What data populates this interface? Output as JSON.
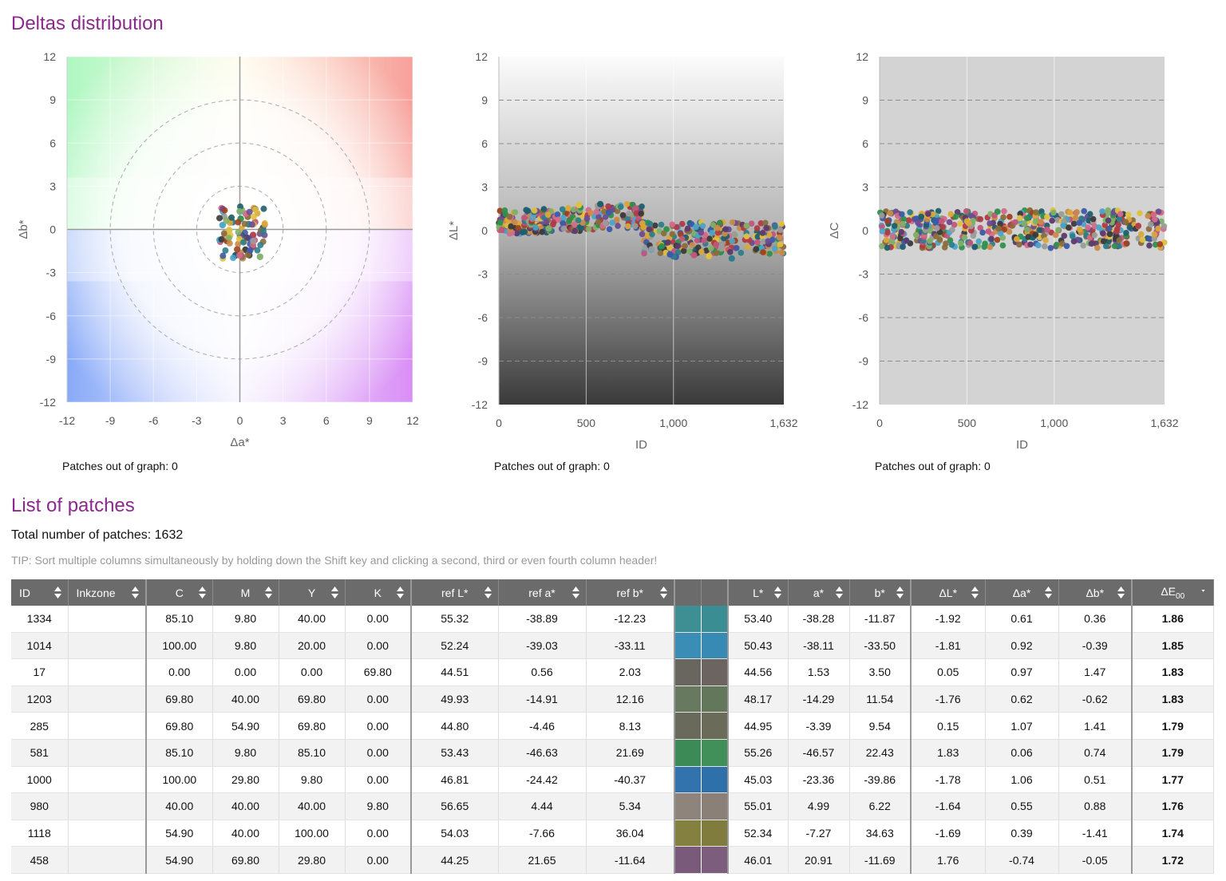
{
  "headings": {
    "deltas": "Deltas distribution",
    "list": "List of patches"
  },
  "charts": {
    "ab": {
      "out_of_graph": "Patches out of graph: 0"
    },
    "dl": {
      "out_of_graph": "Patches out of graph: 0"
    },
    "dc": {
      "out_of_graph": "Patches out of graph: 0"
    }
  },
  "chart_data": [
    {
      "type": "scatter",
      "xlabel": "Δa*",
      "ylabel": "Δb*",
      "xlim": [
        -12,
        12
      ],
      "ylim": [
        -12,
        12
      ],
      "xticks": [
        "-12",
        "-9",
        "-6",
        "-3",
        "0",
        "3",
        "6",
        "9",
        "12"
      ],
      "yticks": [
        "12",
        "9",
        "6",
        "3",
        "0",
        "-3",
        "-6",
        "-9",
        "-12"
      ],
      "reference_circles_radius": [
        3,
        6,
        9
      ],
      "grid": true,
      "points": [
        {
          "x": 0.61,
          "y": 0.36
        },
        {
          "x": 0.92,
          "y": -0.39
        },
        {
          "x": 0.97,
          "y": 1.47
        },
        {
          "x": 0.62,
          "y": -0.62
        },
        {
          "x": 1.07,
          "y": 1.41
        },
        {
          "x": 0.06,
          "y": 0.74
        },
        {
          "x": 1.06,
          "y": 0.51
        },
        {
          "x": 0.55,
          "y": 0.88
        },
        {
          "x": 0.39,
          "y": -1.41
        },
        {
          "x": -0.74,
          "y": -0.05
        },
        {
          "x": -1.2,
          "y": 0.3
        },
        {
          "x": -0.9,
          "y": -0.8
        },
        {
          "x": 1.4,
          "y": -1.9
        },
        {
          "x": -0.3,
          "y": -1.8
        },
        {
          "x": 0.2,
          "y": -2.0
        },
        {
          "x": 1.6,
          "y": 0.1
        },
        {
          "x": -1.1,
          "y": 0.9
        },
        {
          "x": 0.4,
          "y": 1.1
        },
        {
          "x": -0.5,
          "y": 0.5
        },
        {
          "x": 0.9,
          "y": -1.2
        }
      ]
    },
    {
      "type": "scatter",
      "xlabel": "ID",
      "ylabel": "ΔL*",
      "xlim": [
        0,
        1632
      ],
      "ylim": [
        -12,
        12
      ],
      "xticks": [
        "0",
        "500",
        "1,000",
        "1,632"
      ],
      "yticks": [
        "12",
        "9",
        "6",
        "3",
        "0",
        "-3",
        "-6",
        "-9",
        "-12"
      ],
      "grid": true,
      "series_summary": "ΔL* roughly 0 to +1.5 for ID 0–820, roughly -1.5 to +0.7 for ID 820–1632",
      "points": [
        {
          "x": 1334,
          "y": -1.92
        },
        {
          "x": 1014,
          "y": -1.81
        },
        {
          "x": 17,
          "y": 0.05
        },
        {
          "x": 1203,
          "y": -1.76
        },
        {
          "x": 285,
          "y": 0.15
        },
        {
          "x": 581,
          "y": 1.83
        },
        {
          "x": 1000,
          "y": -1.78
        },
        {
          "x": 980,
          "y": -1.64
        },
        {
          "x": 1118,
          "y": -1.69
        },
        {
          "x": 458,
          "y": 1.76
        }
      ]
    },
    {
      "type": "scatter",
      "xlabel": "ID",
      "ylabel": "ΔC",
      "xlim": [
        0,
        1632
      ],
      "ylim": [
        -12,
        12
      ],
      "xticks": [
        "0",
        "500",
        "1,000",
        "1,632"
      ],
      "yticks": [
        "12",
        "9",
        "6",
        "3",
        "0",
        "-3",
        "-6",
        "-9",
        "-12"
      ],
      "grid": true,
      "series_summary": "ΔC roughly -1.8 to +1.7 across all IDs"
    }
  ],
  "list": {
    "total": "Total number of patches: 1632",
    "tip": "TIP: Sort multiple columns simultaneously by holding down the Shift key and clicking a second, third or even fourth column header!"
  },
  "table": {
    "headers": {
      "id": "ID",
      "inkzone": "Inkzone",
      "c": "C",
      "m": "M",
      "y": "Y",
      "k": "K",
      "refl": "ref L*",
      "refa": "ref a*",
      "refb": "ref b*",
      "l": "L*",
      "a": "a*",
      "b": "b*",
      "dl": "ΔL*",
      "da": "Δa*",
      "db": "Δb*",
      "de": "ΔE",
      "de_sub": "00"
    },
    "rows": [
      {
        "id": "1334",
        "inkzone": "",
        "c": "85.10",
        "m": "9.80",
        "y": "40.00",
        "k": "0.00",
        "refl": "55.32",
        "refa": "-38.89",
        "refb": "-12.23",
        "ref_color": "#3e8f94",
        "meas_color": "#3a8d92",
        "l": "53.40",
        "a": "-38.28",
        "b": "-11.87",
        "dl": "-1.92",
        "da": "0.61",
        "db": "0.36",
        "de": "1.86"
      },
      {
        "id": "1014",
        "inkzone": "",
        "c": "100.00",
        "m": "9.80",
        "y": "20.00",
        "k": "0.00",
        "refl": "52.24",
        "refa": "-39.03",
        "refb": "-33.11",
        "ref_color": "#3a8db4",
        "meas_color": "#368ab4",
        "l": "50.43",
        "a": "-38.11",
        "b": "-33.50",
        "dl": "-1.81",
        "da": "0.92",
        "db": "-0.39",
        "de": "1.85"
      },
      {
        "id": "17",
        "inkzone": "",
        "c": "0.00",
        "m": "0.00",
        "y": "0.00",
        "k": "69.80",
        "refl": "44.51",
        "refa": "0.56",
        "refb": "2.03",
        "ref_color": "#69655f",
        "meas_color": "#6b6460",
        "l": "44.56",
        "a": "1.53",
        "b": "3.50",
        "dl": "0.05",
        "da": "0.97",
        "db": "1.47",
        "de": "1.83"
      },
      {
        "id": "1203",
        "inkzone": "",
        "c": "69.80",
        "m": "40.00",
        "y": "69.80",
        "k": "0.00",
        "refl": "49.93",
        "refa": "-14.91",
        "refb": "12.16",
        "ref_color": "#677a5f",
        "meas_color": "#63775b",
        "l": "48.17",
        "a": "-14.29",
        "b": "11.54",
        "dl": "-1.76",
        "da": "0.62",
        "db": "-0.62",
        "de": "1.83"
      },
      {
        "id": "285",
        "inkzone": "",
        "c": "69.80",
        "m": "54.90",
        "y": "69.80",
        "k": "0.00",
        "refl": "44.80",
        "refa": "-4.46",
        "refb": "8.13",
        "ref_color": "#6a6a5c",
        "meas_color": "#6b6b5a",
        "l": "44.95",
        "a": "-3.39",
        "b": "9.54",
        "dl": "0.15",
        "da": "1.07",
        "db": "1.41",
        "de": "1.79"
      },
      {
        "id": "581",
        "inkzone": "",
        "c": "85.10",
        "m": "9.80",
        "y": "85.10",
        "k": "0.00",
        "refl": "53.43",
        "refa": "-46.63",
        "refb": "21.69",
        "ref_color": "#3c8a55",
        "meas_color": "#41905a",
        "l": "55.26",
        "a": "-46.57",
        "b": "22.43",
        "dl": "1.83",
        "da": "0.06",
        "db": "0.74",
        "de": "1.79"
      },
      {
        "id": "1000",
        "inkzone": "",
        "c": "100.00",
        "m": "29.80",
        "y": "9.80",
        "k": "0.00",
        "refl": "46.81",
        "refa": "-24.42",
        "refb": "-40.37",
        "ref_color": "#3273ad",
        "meas_color": "#2e70aa",
        "l": "45.03",
        "a": "-23.36",
        "b": "-39.86",
        "dl": "-1.78",
        "da": "1.06",
        "db": "0.51",
        "de": "1.77"
      },
      {
        "id": "980",
        "inkzone": "",
        "c": "40.00",
        "m": "40.00",
        "y": "40.00",
        "k": "9.80",
        "refl": "56.65",
        "refa": "4.44",
        "refb": "5.34",
        "ref_color": "#8f847c",
        "meas_color": "#8b8078",
        "l": "55.01",
        "a": "4.99",
        "b": "6.22",
        "dl": "-1.64",
        "da": "0.55",
        "db": "0.88",
        "de": "1.76"
      },
      {
        "id": "1118",
        "inkzone": "",
        "c": "54.90",
        "m": "40.00",
        "y": "100.00",
        "k": "0.00",
        "refl": "54.03",
        "refa": "-7.66",
        "refb": "36.04",
        "ref_color": "#84803f",
        "meas_color": "#807c3d",
        "l": "52.34",
        "a": "-7.27",
        "b": "34.63",
        "dl": "-1.69",
        "da": "0.39",
        "db": "-1.41",
        "de": "1.74"
      },
      {
        "id": "458",
        "inkzone": "",
        "c": "54.90",
        "m": "69.80",
        "y": "29.80",
        "k": "0.00",
        "refl": "44.25",
        "refa": "21.65",
        "refb": "-11.64",
        "ref_color": "#7a5a7a",
        "meas_color": "#7d5d7d",
        "l": "46.01",
        "a": "20.91",
        "b": "-11.69",
        "dl": "1.76",
        "da": "-0.74",
        "db": "-0.05",
        "de": "1.72"
      }
    ]
  }
}
